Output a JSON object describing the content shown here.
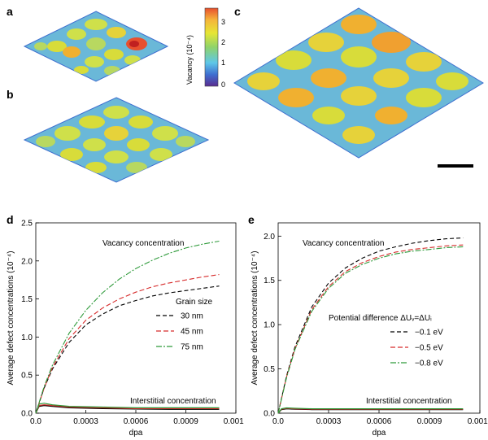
{
  "panels": {
    "a": "a",
    "b": "b",
    "c": "c",
    "d": "d",
    "e": "e"
  },
  "colorbar": {
    "label": "Vacancy (10⁻⁴)",
    "ticks": [
      "0",
      "1",
      "2",
      "3"
    ],
    "colors": [
      "#5a2d91",
      "#3f6fd0",
      "#5ec7e8",
      "#8fd36a",
      "#e6e635",
      "#f5b53a",
      "#e8502e"
    ]
  },
  "maps": {
    "cell_fill": "#d8dc3a",
    "cell_hot": "#f0a030",
    "boundary": "#6ab8d8",
    "boundary_dark": "#3f6fd0"
  },
  "chart_data": [
    {
      "id": "d",
      "type": "line",
      "ylabel": "Average defect concentrations (10⁻⁴)",
      "xlabel": "dpa",
      "xlim": [
        0,
        0.0012
      ],
      "ylim": [
        0,
        2.5
      ],
      "xticks": [
        "0.0",
        "0.0003",
        "0.0006",
        "0.0009",
        "0.0012"
      ],
      "xtick_values": [
        0,
        0.0003,
        0.0006,
        0.0009,
        0.0012
      ],
      "yticks": [
        "0.0",
        "0.5",
        "1.0",
        "1.5",
        "2.0",
        "2.5"
      ],
      "ytick_values": [
        0,
        0.5,
        1.0,
        1.5,
        2.0,
        2.5
      ],
      "legend_title": "Grain size",
      "legend_position": "right",
      "annotations": [
        "Vacancy concentration",
        "Interstitial concentration"
      ],
      "series": [
        {
          "name": "30 nm",
          "color": "#000000",
          "vacancy": {
            "x": [
              0,
              5e-05,
              0.0001,
              0.0002,
              0.0003,
              0.0004,
              0.0005,
              0.0006,
              0.0007,
              0.0008,
              0.0009,
              0.001,
              0.0011
            ],
            "y": [
              0,
              0.33,
              0.58,
              0.93,
              1.16,
              1.3,
              1.41,
              1.48,
              1.54,
              1.58,
              1.61,
              1.64,
              1.67
            ]
          },
          "interstitial": {
            "x": [
              0,
              2e-05,
              5e-05,
              0.0001,
              0.0002,
              0.0004,
              0.0006,
              0.0008,
              0.001,
              0.0011
            ],
            "y": [
              0,
              0.09,
              0.1,
              0.09,
              0.07,
              0.06,
              0.055,
              0.05,
              0.05,
              0.05
            ]
          }
        },
        {
          "name": "45 nm",
          "color": "#d62a2a",
          "vacancy": {
            "x": [
              0,
              5e-05,
              0.0001,
              0.0002,
              0.0003,
              0.0004,
              0.0005,
              0.0006,
              0.0007,
              0.0008,
              0.0009,
              0.001,
              0.0011
            ],
            "y": [
              0,
              0.33,
              0.6,
              0.98,
              1.22,
              1.38,
              1.5,
              1.59,
              1.66,
              1.71,
              1.75,
              1.79,
              1.82
            ]
          },
          "interstitial": {
            "x": [
              0,
              2e-05,
              5e-05,
              0.0001,
              0.0002,
              0.0004,
              0.0006,
              0.0008,
              0.001,
              0.0011
            ],
            "y": [
              0,
              0.1,
              0.11,
              0.1,
              0.08,
              0.07,
              0.06,
              0.06,
              0.06,
              0.06
            ]
          }
        },
        {
          "name": "75 nm",
          "color": "#2e9a3a",
          "vacancy": {
            "x": [
              0,
              5e-05,
              0.0001,
              0.0002,
              0.0003,
              0.0004,
              0.0005,
              0.0006,
              0.0007,
              0.0008,
              0.0009,
              0.001,
              0.0011
            ],
            "y": [
              0,
              0.35,
              0.63,
              1.05,
              1.35,
              1.58,
              1.76,
              1.9,
              2.01,
              2.1,
              2.17,
              2.22,
              2.26
            ]
          },
          "interstitial": {
            "x": [
              0,
              2e-05,
              5e-05,
              0.0001,
              0.0002,
              0.0004,
              0.0006,
              0.0008,
              0.001,
              0.0011
            ],
            "y": [
              0,
              0.12,
              0.13,
              0.11,
              0.09,
              0.08,
              0.07,
              0.07,
              0.07,
              0.07
            ]
          }
        }
      ]
    },
    {
      "id": "e",
      "type": "line",
      "ylabel": "Average defect concentrations (10⁻⁴)",
      "xlabel": "dpa",
      "xlim": [
        0,
        0.0012
      ],
      "ylim": [
        0,
        2.15
      ],
      "xticks": [
        "0.0",
        "0.0003",
        "0.0006",
        "0.0009",
        "0.0012"
      ],
      "xtick_values": [
        0,
        0.0003,
        0.0006,
        0.0009,
        0.0012
      ],
      "yticks": [
        "0.0",
        "0.5",
        "1.0",
        "1.5",
        "2.0"
      ],
      "ytick_values": [
        0,
        0.5,
        1.0,
        1.5,
        2.0
      ],
      "legend_title": "Potential difference ΔUᵥ=ΔUᵢ",
      "legend_position": "right",
      "annotations": [
        "Vacancy concentration",
        "Interstitial concentration"
      ],
      "series": [
        {
          "name": "−0.1 eV",
          "color": "#000000",
          "vacancy": {
            "x": [
              0,
              5e-05,
              0.0001,
              0.0002,
              0.0003,
              0.0004,
              0.0005,
              0.0006,
              0.0007,
              0.0008,
              0.0009,
              0.001,
              0.0011
            ],
            "y": [
              0,
              0.42,
              0.75,
              1.2,
              1.47,
              1.64,
              1.75,
              1.83,
              1.88,
              1.92,
              1.95,
              1.97,
              1.98
            ]
          },
          "interstitial": {
            "x": [
              0,
              2e-05,
              5e-05,
              0.0001,
              0.0002,
              0.0004,
              0.0006,
              0.0008,
              0.001,
              0.0011
            ],
            "y": [
              0,
              0.04,
              0.05,
              0.045,
              0.04,
              0.04,
              0.04,
              0.04,
              0.04,
              0.04
            ]
          }
        },
        {
          "name": "−0.5 eV",
          "color": "#d62a2a",
          "vacancy": {
            "x": [
              0,
              5e-05,
              0.0001,
              0.0002,
              0.0003,
              0.0004,
              0.0005,
              0.0006,
              0.0007,
              0.0008,
              0.0009,
              0.001,
              0.0011
            ],
            "y": [
              0,
              0.41,
              0.73,
              1.17,
              1.43,
              1.6,
              1.7,
              1.77,
              1.82,
              1.85,
              1.87,
              1.89,
              1.9
            ]
          },
          "interstitial": {
            "x": [
              0,
              2e-05,
              5e-05,
              0.0001,
              0.0002,
              0.0004,
              0.0006,
              0.0008,
              0.001,
              0.0011
            ],
            "y": [
              0,
              0.045,
              0.055,
              0.05,
              0.045,
              0.045,
              0.045,
              0.045,
              0.045,
              0.045
            ]
          }
        },
        {
          "name": "−0.8 eV",
          "color": "#2e9a3a",
          "vacancy": {
            "x": [
              0,
              5e-05,
              0.0001,
              0.0002,
              0.0003,
              0.0004,
              0.0005,
              0.0006,
              0.0007,
              0.0008,
              0.0009,
              0.001,
              0.0011
            ],
            "y": [
              0,
              0.4,
              0.72,
              1.15,
              1.41,
              1.58,
              1.68,
              1.75,
              1.8,
              1.83,
              1.85,
              1.87,
              1.88
            ]
          },
          "interstitial": {
            "x": [
              0,
              2e-05,
              5e-05,
              0.0001,
              0.0002,
              0.0004,
              0.0006,
              0.0008,
              0.001,
              0.0011
            ],
            "y": [
              0,
              0.05,
              0.06,
              0.055,
              0.05,
              0.05,
              0.05,
              0.05,
              0.05,
              0.05
            ]
          }
        }
      ]
    }
  ]
}
